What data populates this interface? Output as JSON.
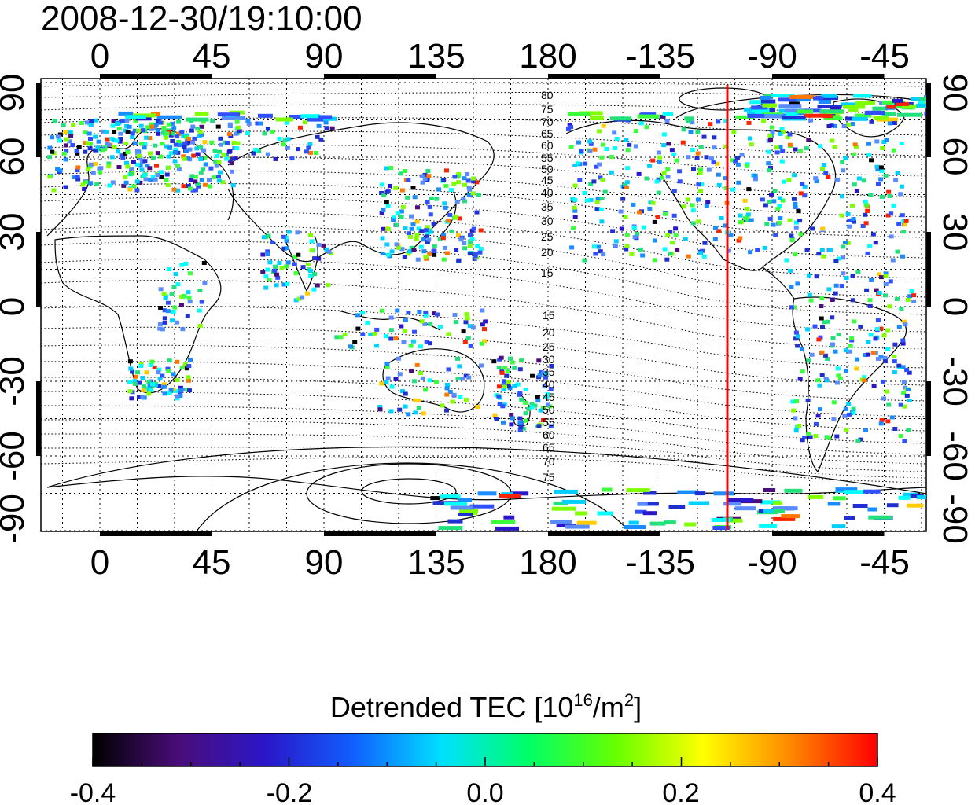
{
  "header": {
    "timestamp": "2008-12-30/19:10:00"
  },
  "map": {
    "lon_ticks": [
      "0",
      "45",
      "90",
      "135",
      "180",
      "-135",
      "-90",
      "-45"
    ],
    "lat_ticks": [
      "90",
      "60",
      "30",
      "0",
      "-30",
      "-60",
      "-90"
    ],
    "contour_labels_north": [
      "80",
      "75",
      "70",
      "65",
      "60",
      "55",
      "50",
      "45",
      "40",
      "35",
      "30",
      "25",
      "20",
      "15"
    ],
    "contour_labels_south": [
      "15",
      "20",
      "25",
      "30",
      "35",
      "40",
      "45",
      "50",
      "55",
      "60",
      "65",
      "70",
      "75"
    ],
    "marker_line": {
      "color": "#ff0000",
      "longitude": -105
    },
    "colors": {
      "land_outline": "#000000",
      "grid": "#000000"
    }
  },
  "colorbar": {
    "title_main": "Detrended TEC  [10",
    "title_sup1": "16",
    "title_mid": "/m",
    "title_sup2": "2",
    "title_end": "]",
    "tick_labels": [
      "-0.4",
      "-0.2",
      "0.0",
      "0.2",
      "0.4"
    ],
    "range": [
      -0.4,
      0.4
    ],
    "stops": [
      "#000000",
      "#4a0d7a",
      "#2a17c9",
      "#1060ff",
      "#00e0ff",
      "#00ff66",
      "#66ff00",
      "#ffff00",
      "#ff8800",
      "#ff0000"
    ]
  }
}
